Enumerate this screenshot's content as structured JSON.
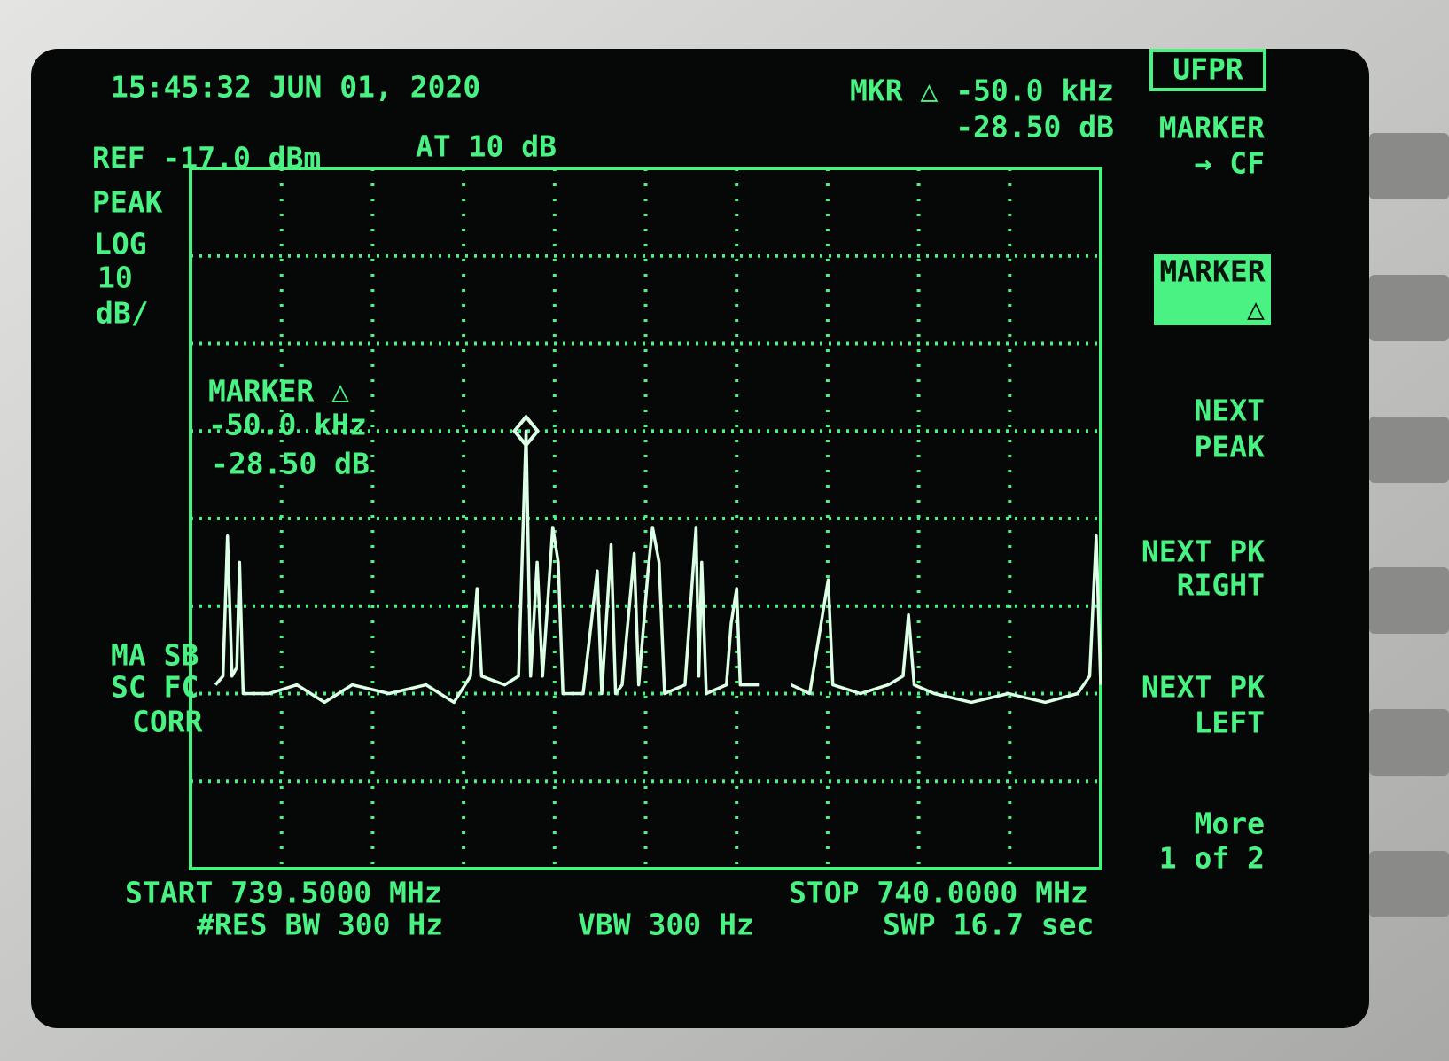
{
  "screen": {
    "timestamp": "15:45:32 JUN 01, 2020",
    "mkr_freq": "MKR △ -50.0 kHz",
    "mkr_amp": "-28.50 dB",
    "ref": "REF -17.0 dBm",
    "atten": "AT 10 dB",
    "detector": "PEAK",
    "scale_mode": "LOG",
    "scale_value": "10",
    "scale_unit": "dB/",
    "status": [
      "MA SB",
      "SC FC",
      "CORR"
    ],
    "marker_box": [
      "MARKER △",
      "-50.0 kHz",
      "-28.50 dB"
    ],
    "start": "START 739.5000 MHz",
    "res_bw": "#RES BW 300 Hz",
    "vbw": "VBW 300 Hz",
    "stop": "STOP 740.0000 MHz",
    "sweep": "SWP 16.7  sec",
    "softkeys": {
      "top": "UFPR",
      "marker_cf": [
        "MARKER",
        "→ CF"
      ],
      "marker_delta": [
        "MARKER",
        "△"
      ],
      "next_peak": [
        "NEXT",
        "PEAK"
      ],
      "next_pk_right": [
        "NEXT PK",
        "RIGHT"
      ],
      "next_pk_left": [
        "NEXT PK",
        "LEFT"
      ],
      "more": [
        "More",
        "1 of 2"
      ]
    }
  },
  "chart_data": {
    "type": "line",
    "color": "#dcffe6",
    "xlim": [
      739.5,
      740.0
    ],
    "ylim": [
      -97,
      -17
    ],
    "grid": true,
    "x": [
      739.5137,
      739.5178,
      739.5203,
      739.5228,
      739.5254,
      739.5269,
      739.5289,
      739.5431,
      739.5584,
      739.5736,
      739.5888,
      739.6091,
      739.6294,
      739.6447,
      739.6538,
      739.6574,
      739.6599,
      739.6726,
      739.6802,
      739.6843,
      739.6868,
      739.6904,
      739.6934,
      739.6964,
      739.699,
      739.702,
      739.7046,
      739.7157,
      739.7234,
      739.7259,
      739.731,
      739.7335,
      739.7371,
      739.7437,
      739.7462,
      739.7513,
      739.7538,
      739.7574,
      739.7604,
      739.7716,
      739.7777,
      739.7792,
      739.7808,
      739.7833,
      739.7944,
      739.797,
      739.8,
      739.802,
      739.8122,
      739.8147,
      739.8299,
      739.8401,
      739.8503,
      739.8528,
      739.868,
      739.8833,
      739.8914,
      739.8944,
      739.8975,
      739.9086,
      739.9289,
      739.9492,
      739.9695,
      739.9873,
      739.9939,
      739.9975,
      740.0
    ],
    "values": [
      -76,
      -75,
      -59,
      -75,
      -74,
      -62,
      -77,
      -77,
      -76,
      -78,
      -76,
      -77,
      -76,
      -78,
      -75,
      -65,
      -75,
      -76,
      -75,
      -47,
      -75,
      -62,
      -75,
      -66,
      -58,
      -62,
      -77,
      -77,
      -63,
      -77,
      -60,
      -77,
      -76,
      -61,
      -76,
      -63,
      -58,
      -62,
      -77,
      -76,
      -58,
      -75,
      -62,
      -77,
      -76,
      -69,
      -65,
      -76,
      -76,
      null,
      -76,
      -77,
      -64,
      -76,
      -77,
      -76,
      -75,
      -68,
      -76,
      -77,
      -78,
      -77,
      -78,
      -77,
      -75,
      -59,
      -76
    ],
    "marker": {
      "x": 739.6843,
      "y": -47
    }
  }
}
